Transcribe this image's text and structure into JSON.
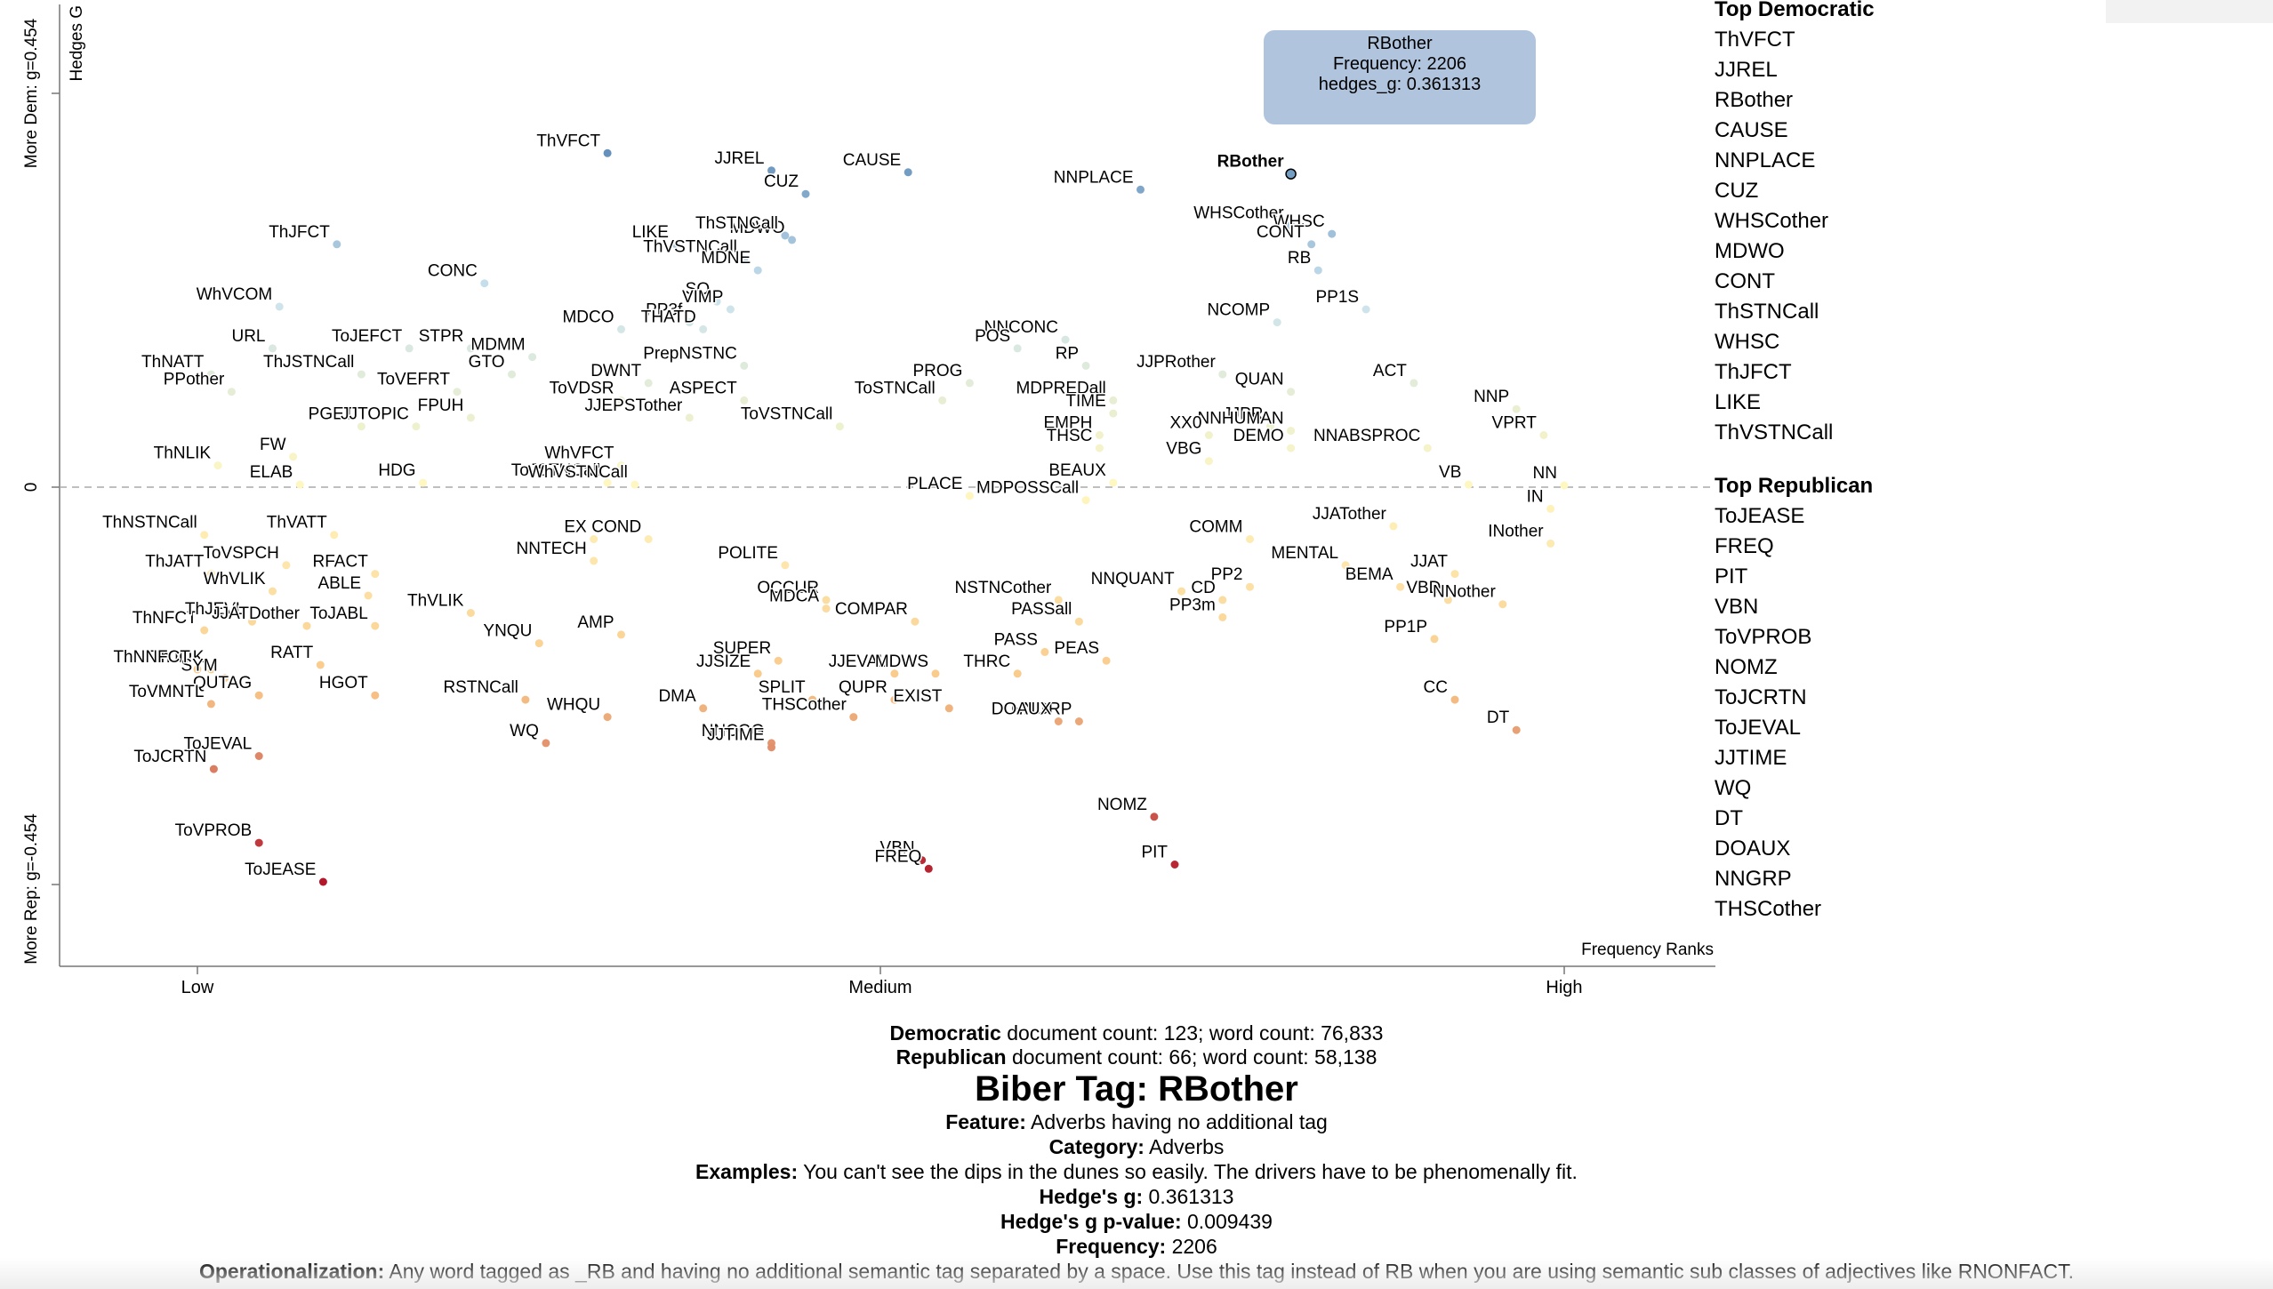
{
  "chart_data": {
    "type": "scatter",
    "xlabel": "Frequency Ranks",
    "x_tick_labels": [
      "Low",
      "Medium",
      "High"
    ],
    "ylabel": "Hedges G",
    "y_tick_labels": {
      "top": "More Dem: g=0.454",
      "zero": "0",
      "bottom": "More Rep: g=-0.454"
    },
    "xlim": [
      0,
      1
    ],
    "ylim": [
      -0.454,
      0.454
    ],
    "points": [
      {
        "label": "ThVFCT",
        "x": 0.3,
        "y": 0.385
      },
      {
        "label": "JJREL",
        "x": 0.42,
        "y": 0.365
      },
      {
        "label": "CAUSE",
        "x": 0.52,
        "y": 0.363
      },
      {
        "label": "RBother",
        "x": 0.8,
        "y": 0.361
      },
      {
        "label": "NNPLACE",
        "x": 0.69,
        "y": 0.343
      },
      {
        "label": "CUZ",
        "x": 0.445,
        "y": 0.338
      },
      {
        "label": "WHSCother",
        "x": 0.8,
        "y": 0.302
      },
      {
        "label": "WHSC",
        "x": 0.83,
        "y": 0.292
      },
      {
        "label": "MDWO",
        "x": 0.435,
        "y": 0.285
      },
      {
        "label": "ThSTNCall",
        "x": 0.43,
        "y": 0.29
      },
      {
        "label": "CONT",
        "x": 0.815,
        "y": 0.28
      },
      {
        "label": "ThJFCT",
        "x": 0.102,
        "y": 0.28
      },
      {
        "label": "LIKE",
        "x": 0.35,
        "y": 0.28
      },
      {
        "label": "ThVSTNCall",
        "x": 0.4,
        "y": 0.263
      },
      {
        "label": "MDNE",
        "x": 0.41,
        "y": 0.25
      },
      {
        "label": "RB",
        "x": 0.82,
        "y": 0.25
      },
      {
        "label": "CONC",
        "x": 0.21,
        "y": 0.235
      },
      {
        "label": "SO",
        "x": 0.38,
        "y": 0.214
      },
      {
        "label": "VIMP",
        "x": 0.39,
        "y": 0.205
      },
      {
        "label": "PP1S",
        "x": 0.855,
        "y": 0.205
      },
      {
        "label": "WhVCOM",
        "x": 0.06,
        "y": 0.208
      },
      {
        "label": "PP3f",
        "x": 0.36,
        "y": 0.19
      },
      {
        "label": "THATD",
        "x": 0.37,
        "y": 0.182
      },
      {
        "label": "MDCO",
        "x": 0.31,
        "y": 0.182
      },
      {
        "label": "NNCONC",
        "x": 0.635,
        "y": 0.17
      },
      {
        "label": "NCOMP",
        "x": 0.79,
        "y": 0.19
      },
      {
        "label": "ToJEFCT",
        "x": 0.155,
        "y": 0.16
      },
      {
        "label": "STPR",
        "x": 0.2,
        "y": 0.16
      },
      {
        "label": "MDMM",
        "x": 0.245,
        "y": 0.15
      },
      {
        "label": "URL",
        "x": 0.055,
        "y": 0.16
      },
      {
        "label": "POS",
        "x": 0.6,
        "y": 0.16
      },
      {
        "label": "PrepNSTNC",
        "x": 0.4,
        "y": 0.14
      },
      {
        "label": "ThNATT",
        "x": 0.01,
        "y": 0.13
      },
      {
        "label": "DWNT",
        "x": 0.33,
        "y": 0.12
      },
      {
        "label": "ThJSTNCall",
        "x": 0.12,
        "y": 0.13
      },
      {
        "label": "PROG",
        "x": 0.565,
        "y": 0.12
      },
      {
        "label": "RP",
        "x": 0.65,
        "y": 0.14
      },
      {
        "label": "JJPRother",
        "x": 0.75,
        "y": 0.13
      },
      {
        "label": "GTO",
        "x": 0.23,
        "y": 0.13
      },
      {
        "label": "ASPECT",
        "x": 0.4,
        "y": 0.1
      },
      {
        "label": "ACT",
        "x": 0.89,
        "y": 0.12
      },
      {
        "label": "PPother",
        "x": 0.025,
        "y": 0.11
      },
      {
        "label": "ToVEFRT",
        "x": 0.19,
        "y": 0.11
      },
      {
        "label": "QUAN",
        "x": 0.8,
        "y": 0.11
      },
      {
        "label": "NNP",
        "x": 0.965,
        "y": 0.09
      },
      {
        "label": "ToVDSR",
        "x": 0.31,
        "y": 0.1
      },
      {
        "label": "ToSTNCall",
        "x": 0.545,
        "y": 0.1
      },
      {
        "label": "MDPREDall",
        "x": 0.67,
        "y": 0.1
      },
      {
        "label": "TIME",
        "x": 0.67,
        "y": 0.085
      },
      {
        "label": "JJPR",
        "x": 0.785,
        "y": 0.07
      },
      {
        "label": "PGET",
        "x": 0.12,
        "y": 0.07
      },
      {
        "label": "JJTOPIC",
        "x": 0.16,
        "y": 0.07
      },
      {
        "label": "FPUH",
        "x": 0.2,
        "y": 0.08
      },
      {
        "label": "JJEPSTother",
        "x": 0.36,
        "y": 0.08
      },
      {
        "label": "ToVSTNCall",
        "x": 0.47,
        "y": 0.07
      },
      {
        "label": "EMPH",
        "x": 0.66,
        "y": 0.06
      },
      {
        "label": "THSC",
        "x": 0.66,
        "y": 0.045
      },
      {
        "label": "NNHUMAN",
        "x": 0.8,
        "y": 0.065
      },
      {
        "label": "VPRT",
        "x": 0.985,
        "y": 0.06
      },
      {
        "label": "XX0",
        "x": 0.74,
        "y": 0.06
      },
      {
        "label": "DEMO",
        "x": 0.8,
        "y": 0.045
      },
      {
        "label": "NNABSPROC",
        "x": 0.9,
        "y": 0.045
      },
      {
        "label": "FW",
        "x": 0.07,
        "y": 0.035
      },
      {
        "label": "WhVFCT",
        "x": 0.31,
        "y": 0.025
      },
      {
        "label": "VBG",
        "x": 0.74,
        "y": 0.03
      },
      {
        "label": "ThNLIK",
        "x": 0.015,
        "y": 0.025
      },
      {
        "label": "HDG",
        "x": 0.165,
        "y": 0.005
      },
      {
        "label": "ToJSTNCall",
        "x": 0.3,
        "y": 0.005
      },
      {
        "label": "ELAB",
        "x": 0.075,
        "y": 0.003
      },
      {
        "label": "WhVSTNCall",
        "x": 0.32,
        "y": 0.003
      },
      {
        "label": "BEAUX",
        "x": 0.67,
        "y": 0.005
      },
      {
        "label": "VB",
        "x": 0.93,
        "y": 0.003
      },
      {
        "label": "NN",
        "x": 1.0,
        "y": 0.002
      },
      {
        "label": "MDPOSSCall",
        "x": 0.65,
        "y": -0.015
      },
      {
        "label": "PLACE",
        "x": 0.565,
        "y": -0.01
      },
      {
        "label": "IN",
        "x": 0.99,
        "y": -0.025
      },
      {
        "label": "JJATother",
        "x": 0.875,
        "y": -0.045
      },
      {
        "label": "ThNSTNCall",
        "x": 0.005,
        "y": -0.055
      },
      {
        "label": "ThVATT",
        "x": 0.1,
        "y": -0.055
      },
      {
        "label": "EX",
        "x": 0.29,
        "y": -0.06
      },
      {
        "label": "COND",
        "x": 0.33,
        "y": -0.06
      },
      {
        "label": "COMM",
        "x": 0.77,
        "y": -0.06
      },
      {
        "label": "INother",
        "x": 0.99,
        "y": -0.065
      },
      {
        "label": "NNTECH",
        "x": 0.29,
        "y": -0.085
      },
      {
        "label": "RFACT",
        "x": 0.13,
        "y": -0.1
      },
      {
        "label": "ThJATT",
        "x": 0.01,
        "y": -0.1
      },
      {
        "label": "ToVSPCH",
        "x": 0.065,
        "y": -0.09
      },
      {
        "label": "POLITE",
        "x": 0.43,
        "y": -0.09
      },
      {
        "label": "MENTAL",
        "x": 0.84,
        "y": -0.09
      },
      {
        "label": "BEMA",
        "x": 0.88,
        "y": -0.115
      },
      {
        "label": "JJAT",
        "x": 0.92,
        "y": -0.1
      },
      {
        "label": "OCCUR",
        "x": 0.46,
        "y": -0.13
      },
      {
        "label": "WhVLIK",
        "x": 0.055,
        "y": -0.12
      },
      {
        "label": "NNQUANT",
        "x": 0.72,
        "y": -0.12
      },
      {
        "label": "ABLE",
        "x": 0.125,
        "y": -0.125
      },
      {
        "label": "CD",
        "x": 0.75,
        "y": -0.13
      },
      {
        "label": "PP2",
        "x": 0.77,
        "y": -0.115
      },
      {
        "label": "NSTNCother",
        "x": 0.63,
        "y": -0.13
      },
      {
        "label": "COMPAR",
        "x": 0.525,
        "y": -0.155
      },
      {
        "label": "MDCA",
        "x": 0.46,
        "y": -0.14
      },
      {
        "label": "ThVLIK",
        "x": 0.2,
        "y": -0.145
      },
      {
        "label": "VBD",
        "x": 0.915,
        "y": -0.13
      },
      {
        "label": "PASSall",
        "x": 0.645,
        "y": -0.155
      },
      {
        "label": "NNother",
        "x": 0.955,
        "y": -0.135
      },
      {
        "label": "ThNFCT",
        "x": 0.005,
        "y": -0.165
      },
      {
        "label": "ThJEVL",
        "x": 0.04,
        "y": -0.155
      },
      {
        "label": "JJATDother",
        "x": 0.08,
        "y": -0.16
      },
      {
        "label": "ToJABL",
        "x": 0.13,
        "y": -0.16
      },
      {
        "label": "PP3m",
        "x": 0.75,
        "y": -0.15
      },
      {
        "label": "YNQU",
        "x": 0.25,
        "y": -0.18
      },
      {
        "label": "AMP",
        "x": 0.31,
        "y": -0.17
      },
      {
        "label": "SUPER",
        "x": 0.425,
        "y": -0.2
      },
      {
        "label": "PASS",
        "x": 0.62,
        "y": -0.19
      },
      {
        "label": "PP1P",
        "x": 0.905,
        "y": -0.175
      },
      {
        "label": "JJEVAL",
        "x": 0.51,
        "y": -0.215
      },
      {
        "label": "RATT",
        "x": 0.09,
        "y": -0.205
      },
      {
        "label": "ThJLIK",
        "x": 0.01,
        "y": -0.21
      },
      {
        "label": "SYM",
        "x": 0.02,
        "y": -0.22
      },
      {
        "label": "JJSIZE",
        "x": 0.41,
        "y": -0.215
      },
      {
        "label": "MDWS",
        "x": 0.54,
        "y": -0.215
      },
      {
        "label": "THRC",
        "x": 0.6,
        "y": -0.215
      },
      {
        "label": "PEAS",
        "x": 0.665,
        "y": -0.2
      },
      {
        "label": "ThNNFCT",
        "x": 0.0,
        "y": -0.21
      },
      {
        "label": "HGOT",
        "x": 0.13,
        "y": -0.24
      },
      {
        "label": "RSTNCall",
        "x": 0.24,
        "y": -0.245
      },
      {
        "label": "SPLIT",
        "x": 0.45,
        "y": -0.245
      },
      {
        "label": "QUTAG",
        "x": 0.045,
        "y": -0.24
      },
      {
        "label": "QUPR",
        "x": 0.51,
        "y": -0.245
      },
      {
        "label": "EXIST",
        "x": 0.55,
        "y": -0.255
      },
      {
        "label": "ToVMNTL",
        "x": 0.01,
        "y": -0.25
      },
      {
        "label": "CC",
        "x": 0.92,
        "y": -0.245
      },
      {
        "label": "NNGRP",
        "x": 0.645,
        "y": -0.27
      },
      {
        "label": "WHQU",
        "x": 0.3,
        "y": -0.265
      },
      {
        "label": "DMA",
        "x": 0.37,
        "y": -0.255
      },
      {
        "label": "DOAUX",
        "x": 0.63,
        "y": -0.27
      },
      {
        "label": "THSCother",
        "x": 0.48,
        "y": -0.265
      },
      {
        "label": "DT",
        "x": 0.965,
        "y": -0.28
      },
      {
        "label": "WQ",
        "x": 0.255,
        "y": -0.295
      },
      {
        "label": "NNCOG",
        "x": 0.42,
        "y": -0.295
      },
      {
        "label": "JJTIME",
        "x": 0.42,
        "y": -0.3
      },
      {
        "label": "ToJCRTN",
        "x": 0.012,
        "y": -0.325
      },
      {
        "label": "ToJEVAL",
        "x": 0.045,
        "y": -0.31
      },
      {
        "label": "NOMZ",
        "x": 0.7,
        "y": -0.38
      },
      {
        "label": "VBN",
        "x": 0.53,
        "y": -0.43
      },
      {
        "label": "FREQ",
        "x": 0.535,
        "y": -0.44
      },
      {
        "label": "PIT",
        "x": 0.715,
        "y": -0.435
      },
      {
        "label": "ToVPROB",
        "x": 0.045,
        "y": -0.41
      },
      {
        "label": "ToJEASE",
        "x": 0.092,
        "y": -0.455
      }
    ],
    "colors": {
      "dem_strong": "#3a6ea5",
      "dem_light": "#c9e2ee",
      "neutral": "#fff7c0",
      "rep_light": "#f9c98a",
      "rep_strong": "#b2182b"
    },
    "highlight": "RBother"
  },
  "sidebar": {
    "dem_heading": "Top Democratic",
    "dem_items": [
      "ThVFCT",
      "JJREL",
      "RBother",
      "CAUSE",
      "NNPLACE",
      "CUZ",
      "WHSCother",
      "MDWO",
      "CONT",
      "ThSTNCall",
      "WHSC",
      "ThJFCT",
      "LIKE",
      "ThVSTNCall"
    ],
    "rep_heading": "Top Republican",
    "rep_items": [
      "ToJEASE",
      "FREQ",
      "PIT",
      "VBN",
      "ToVPROB",
      "NOMZ",
      "ToJCRTN",
      "ToJEVAL",
      "JJTIME",
      "WQ",
      "DT",
      "DOAUX",
      "NNGRP",
      "THSCother"
    ]
  },
  "tooltip": {
    "name": "RBother",
    "freq": "Frequency: 2206",
    "g": "hedges_g: 0.361313"
  },
  "info": {
    "dem_label": "Democratic",
    "dem_counts": " document count: 123; word count: 76,833",
    "rep_label": "Republican",
    "rep_counts": " document count: 66; word count: 58,138",
    "title": "Biber Tag: RBother",
    "feature_label": "Feature:",
    "feature": " Adverbs having no additional tag",
    "category_label": "Category:",
    "category": " Adverbs",
    "examples_label": "Examples:",
    "examples": " You can't see the dips in the dunes so easily. The drivers have to be phenomenally fit.",
    "hedges_label": "Hedge's g:",
    "hedges": " 0.361313",
    "pvalue_label": "Hedge's g p-value:",
    "pvalue": " 0.009439",
    "frequency_label": "Frequency:",
    "frequency": " 2206",
    "oper_label": "Operationalization:",
    "oper": " Any word tagged as _RB and having no additional semantic tag separated by a space. Use this tag instead of RB when you are using semantic sub classes of adjectives like RNONFACT."
  }
}
